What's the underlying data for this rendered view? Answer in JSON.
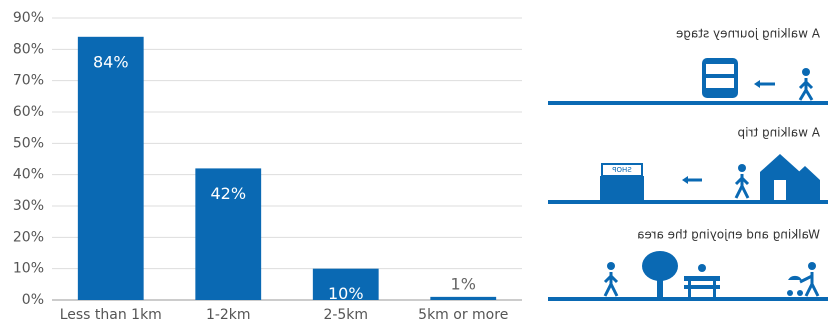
{
  "chart_data": {
    "type": "bar",
    "categories": [
      "Less than 1km",
      "1-2km",
      "2-5km",
      "5km or more"
    ],
    "values": [
      84,
      42,
      10,
      1
    ],
    "value_labels": [
      "84%",
      "42%",
      "10%",
      "1%"
    ],
    "color": "#0a69b3",
    "ylim": [
      0,
      90
    ],
    "yticks": [
      {
        "value": 0,
        "label": "0%"
      },
      {
        "value": 10,
        "label": "10%"
      },
      {
        "value": 20,
        "label": "20%"
      },
      {
        "value": 30,
        "label": "30%"
      },
      {
        "value": 40,
        "label": "40%"
      },
      {
        "value": 50,
        "label": "50%"
      },
      {
        "value": 60,
        "label": "60%"
      },
      {
        "value": 70,
        "label": "70%"
      },
      {
        "value": 80,
        "label": "80%"
      },
      {
        "value": 90,
        "label": "90%"
      }
    ],
    "grid": true
  },
  "panels": [
    {
      "label": "A walking journey stage"
    },
    {
      "label": "A walking trip"
    },
    {
      "label": "Walking and enjoying the area"
    }
  ],
  "shop_sign": "SHOP"
}
